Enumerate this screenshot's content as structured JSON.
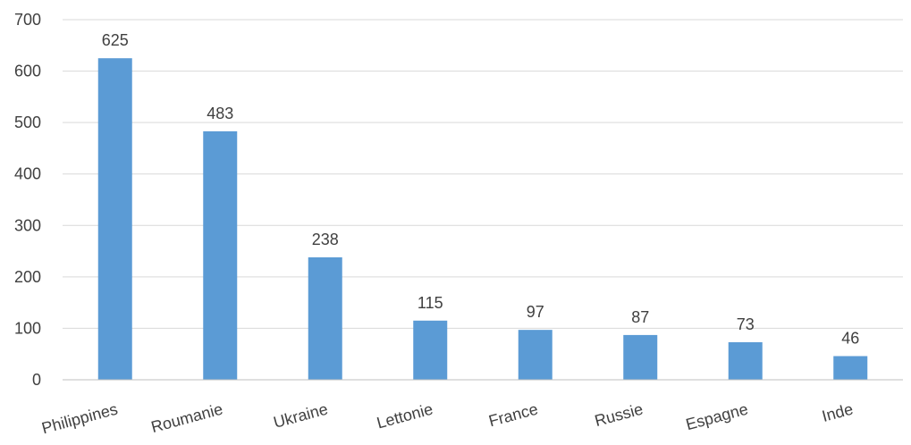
{
  "chart_data": {
    "type": "bar",
    "title": "",
    "xlabel": "",
    "ylabel": "",
    "categories": [
      "Philippines",
      "Roumanie",
      "Ukraine",
      "Lettonie",
      "France",
      "Russie",
      "Espagne",
      "Inde"
    ],
    "values": [
      625,
      483,
      238,
      115,
      97,
      87,
      73,
      46
    ],
    "data_labels": [
      "625",
      "483",
      "238",
      "115",
      "97",
      "87",
      "73",
      "46"
    ],
    "ylim": [
      0,
      700
    ],
    "yticks": [
      0,
      100,
      200,
      300,
      400,
      500,
      600,
      700
    ],
    "ytick_labels": [
      "0",
      "100",
      "200",
      "300",
      "400",
      "500",
      "600",
      "700"
    ],
    "grid": true,
    "legend": "none",
    "bar_color": "#5b9bd5"
  }
}
